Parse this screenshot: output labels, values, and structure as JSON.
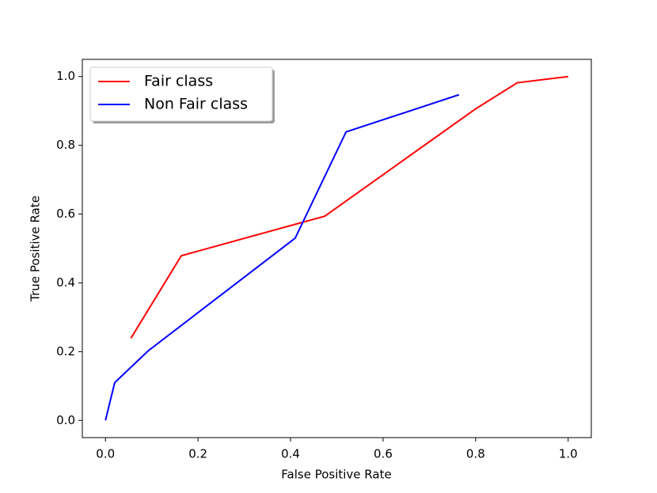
{
  "chart_data": {
    "type": "line",
    "xlabel": "False Positive Rate",
    "ylabel": "True Positive Rate",
    "series": [
      {
        "name": "Fair class",
        "color": "#ff0000",
        "x": [
          0.055,
          0.164,
          0.474,
          0.8,
          0.89,
          1.0
        ],
        "values": [
          0.239,
          0.479,
          0.594,
          0.906,
          0.982,
          1.0
        ]
      },
      {
        "name": "Non Fair class",
        "color": "#0000ff",
        "x": [
          0.0,
          0.02,
          0.092,
          0.41,
          0.52,
          0.764
        ],
        "values": [
          0.0,
          0.11,
          0.202,
          0.53,
          0.839,
          0.947
        ]
      }
    ],
    "xlim": [
      -0.05,
      1.05
    ],
    "ylim": [
      -0.05,
      1.05
    ],
    "xticks": [
      {
        "value": 0,
        "label": "0.0"
      },
      0.2,
      0.4,
      0.6,
      0.8,
      {
        "value": 1,
        "label": "1.0"
      }
    ],
    "yticks": [
      {
        "value": 0,
        "label": "0.0"
      },
      0.2,
      0.4,
      0.6,
      0.8,
      {
        "value": 1,
        "label": "1.0"
      }
    ],
    "legend": "upper left"
  }
}
